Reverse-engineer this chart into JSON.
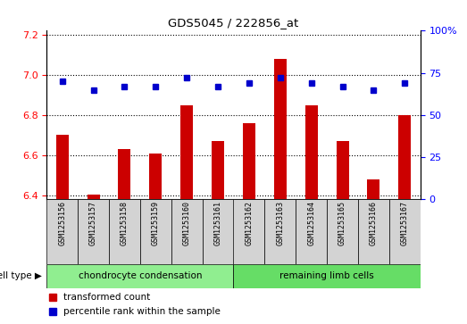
{
  "title": "GDS5045 / 222856_at",
  "samples": [
    "GSM1253156",
    "GSM1253157",
    "GSM1253158",
    "GSM1253159",
    "GSM1253160",
    "GSM1253161",
    "GSM1253162",
    "GSM1253163",
    "GSM1253164",
    "GSM1253165",
    "GSM1253166",
    "GSM1253167"
  ],
  "transformed_count": [
    6.7,
    6.405,
    6.63,
    6.61,
    6.85,
    6.67,
    6.76,
    7.08,
    6.85,
    6.67,
    6.48,
    6.8
  ],
  "percentile_rank": [
    70,
    65,
    67,
    67,
    72,
    67,
    69,
    72,
    69,
    67,
    65,
    69
  ],
  "ylim_left": [
    6.38,
    7.22
  ],
  "ylim_right": [
    0,
    100
  ],
  "yticks_left": [
    6.4,
    6.6,
    6.8,
    7.0,
    7.2
  ],
  "yticks_right": [
    0,
    25,
    50,
    75,
    100
  ],
  "bar_color": "#cc0000",
  "dot_color": "#0000cc",
  "cell_type_groups": [
    {
      "label": "chondrocyte condensation",
      "start": 0,
      "end": 6,
      "color": "#90ee90"
    },
    {
      "label": "remaining limb cells",
      "start": 6,
      "end": 12,
      "color": "#66dd66"
    }
  ],
  "cell_type_label": "cell type",
  "legend_bar_label": "transformed count",
  "legend_dot_label": "percentile rank within the sample",
  "sample_box_color": "#d3d3d3",
  "plot_bg": "#ffffff",
  "bar_width": 0.4
}
